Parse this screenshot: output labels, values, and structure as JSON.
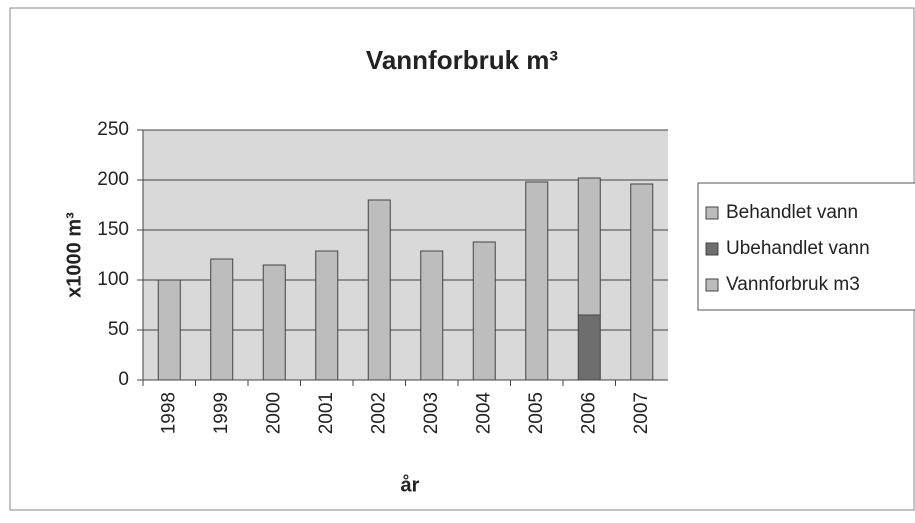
{
  "chart_data": {
    "type": "stacked_bar",
    "title": "Vannforbruk m³",
    "x_label": "år",
    "y_label": "x1000 m³",
    "categories": [
      "1998",
      "1999",
      "2000",
      "2001",
      "2002",
      "2003",
      "2004",
      "2005",
      "2006",
      "2007"
    ],
    "series": [
      {
        "name": "Vannforbruk m3",
        "color": "#bdbdbd",
        "values": [
          100,
          121,
          115,
          129,
          180,
          129,
          138,
          198,
          null,
          196
        ]
      },
      {
        "name": "Ubehandlet vann",
        "color": "#6e6e6e",
        "values": [
          null,
          null,
          null,
          null,
          null,
          null,
          null,
          null,
          65,
          null
        ]
      },
      {
        "name": "Behandlet vann",
        "color": "#bdbdbd",
        "values": [
          null,
          null,
          null,
          null,
          null,
          null,
          null,
          null,
          137,
          null
        ]
      }
    ],
    "ylim": [
      0,
      250
    ],
    "yticks": [
      0,
      50,
      100,
      150,
      200,
      250
    ],
    "grid": true,
    "legend": "right"
  }
}
